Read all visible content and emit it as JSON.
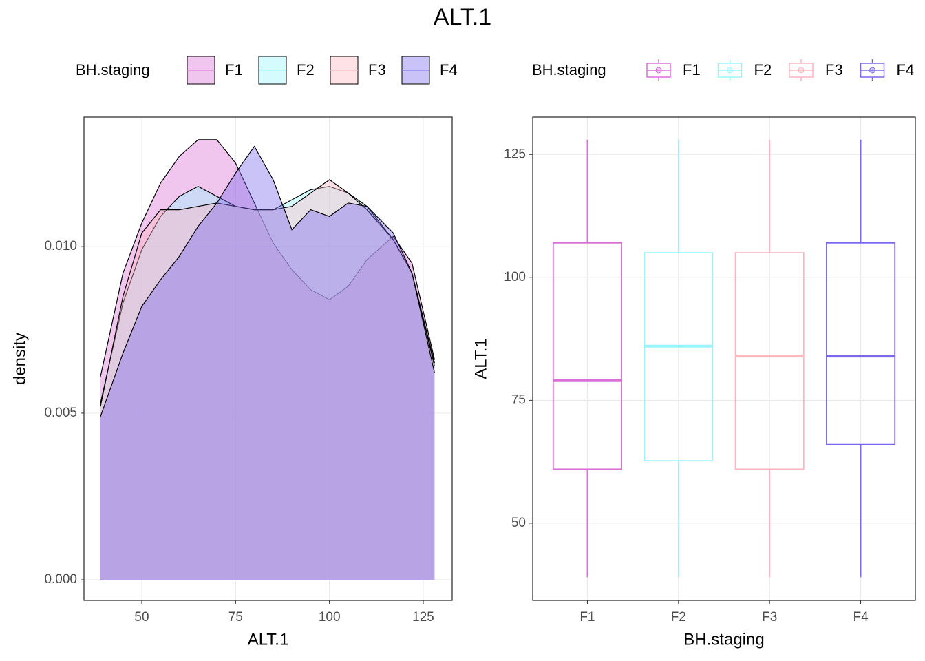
{
  "title": "ALT.1",
  "chart_data": [
    {
      "type": "density",
      "legend_title": "BH.staging",
      "xlabel": "ALT.1",
      "ylabel": "density",
      "x": [
        39,
        45,
        50,
        55,
        60,
        65,
        70,
        75,
        80,
        85,
        90,
        95,
        100,
        105,
        110,
        117,
        122,
        128
      ],
      "series": [
        {
          "name": "F1",
          "color": "#DA70D6",
          "values": [
            0.0061,
            0.0092,
            0.0107,
            0.0119,
            0.0127,
            0.0132,
            0.0132,
            0.0125,
            0.0113,
            0.0101,
            0.0093,
            0.0087,
            0.0084,
            0.0088,
            0.0096,
            0.0103,
            0.0095,
            0.0066
          ]
        },
        {
          "name": "F2",
          "color": "#98F5FF",
          "values": [
            0.0053,
            0.0083,
            0.0099,
            0.0109,
            0.0115,
            0.0118,
            0.0115,
            0.0112,
            0.0111,
            0.0111,
            0.0114,
            0.0117,
            0.0118,
            0.0116,
            0.0112,
            0.0102,
            0.0092,
            0.0065
          ]
        },
        {
          "name": "F3",
          "color": "#FFB6C1",
          "values": [
            0.0052,
            0.0085,
            0.0104,
            0.0111,
            0.0111,
            0.0112,
            0.0113,
            0.0112,
            0.0111,
            0.0111,
            0.0112,
            0.0116,
            0.012,
            0.0116,
            0.0111,
            0.0102,
            0.0092,
            0.0064
          ]
        },
        {
          "name": "F4",
          "color": "#7B68EE",
          "values": [
            0.0049,
            0.0068,
            0.0082,
            0.009,
            0.0097,
            0.0106,
            0.0113,
            0.0122,
            0.013,
            0.012,
            0.0105,
            0.0111,
            0.0109,
            0.0113,
            0.0112,
            0.0104,
            0.0092,
            0.0062
          ]
        }
      ],
      "xlim": [
        34.6,
        132.7
      ],
      "ylim": [
        -0.00062,
        0.01388
      ],
      "xticks": [
        50,
        75,
        100,
        125
      ],
      "yticks": [
        {
          "value": 0,
          "label": "0.000"
        },
        {
          "value": 0.005,
          "label": "0.005"
        },
        {
          "value": 0.01,
          "label": "0.010"
        }
      ],
      "grid": true
    },
    {
      "type": "box",
      "legend_title": "BH.staging",
      "xlabel": "BH.staging",
      "ylabel": "ALT.1",
      "categories": [
        "F1",
        "F2",
        "F3",
        "F4"
      ],
      "series": [
        {
          "name": "F1",
          "color": "#DA70D6",
          "min": 39,
          "q1": 61,
          "median": 79,
          "q3": 107,
          "max": 128
        },
        {
          "name": "F2",
          "color": "#98F5FF",
          "min": 39,
          "q1": 62.7,
          "median": 86,
          "q3": 105,
          "max": 128
        },
        {
          "name": "F3",
          "color": "#FFB6C1",
          "min": 39,
          "q1": 61,
          "median": 84,
          "q3": 105,
          "max": 128
        },
        {
          "name": "F4",
          "color": "#7B68EE",
          "min": 39,
          "q1": 66,
          "median": 84,
          "q3": 107,
          "max": 128
        }
      ],
      "ylim": [
        34.3,
        132.6
      ],
      "yticks": [
        50,
        75,
        100,
        125
      ],
      "grid": true
    }
  ]
}
